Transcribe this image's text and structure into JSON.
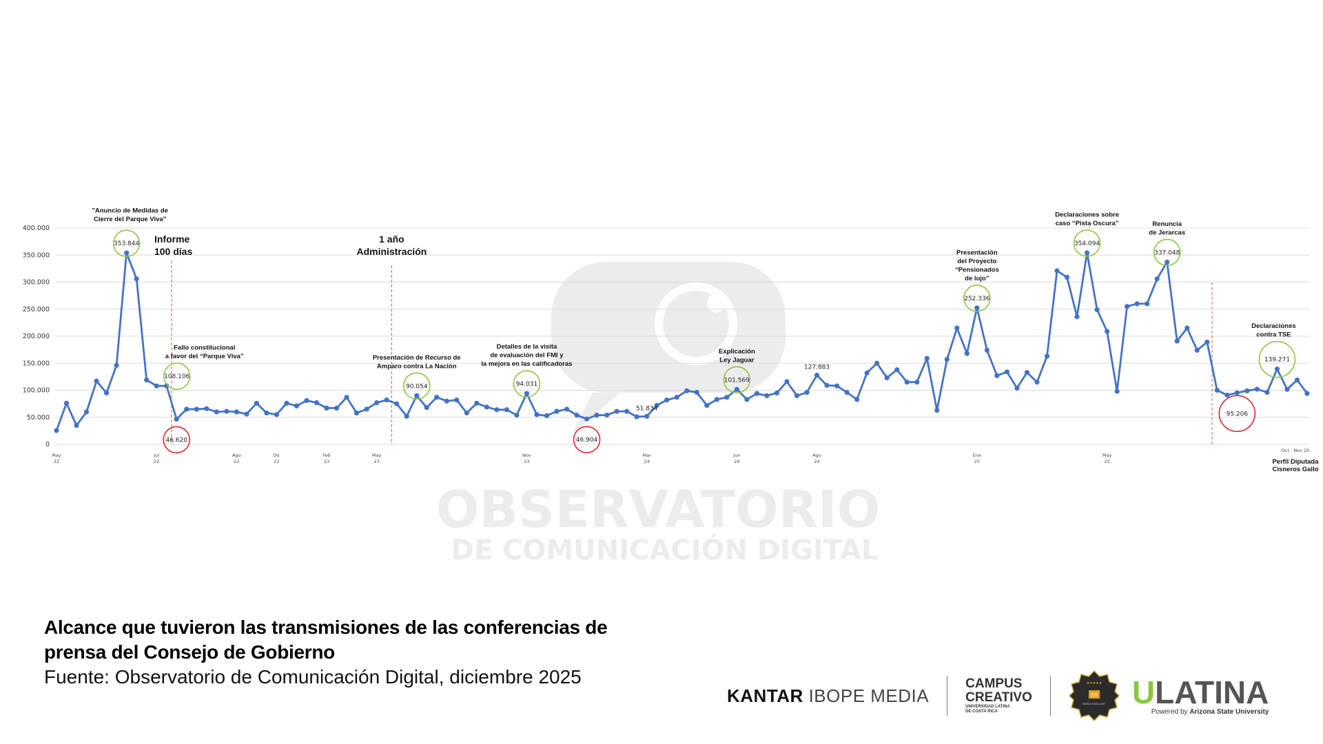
{
  "chart_data": {
    "type": "line",
    "title": "Alcance que tuvieron las transmisiones de las conferencias de prensa del Consejo de Gobierno",
    "source": "Fuente: Observatorio de Comunicación Digital, diciembre 2025",
    "ylim": [
      0,
      400000
    ],
    "y_ticks": [
      "0",
      "50.000",
      "100.000",
      "150.000",
      "200.000",
      "250.000",
      "300.000",
      "350.000",
      "400.000"
    ],
    "grid": true,
    "line_color": "#4472c4",
    "values": [
      25600,
      76000,
      35000,
      60000,
      117000,
      95000,
      146000,
      353844,
      306000,
      119000,
      108000,
      108106,
      46620,
      65000,
      65000,
      66000,
      60000,
      61000,
      60000,
      56000,
      76000,
      58000,
      55000,
      76000,
      71000,
      81000,
      77000,
      67000,
      67000,
      87000,
      58000,
      65000,
      77000,
      82000,
      75000,
      52000,
      90054,
      68000,
      87000,
      80000,
      82000,
      58000,
      76000,
      69000,
      64000,
      64000,
      54000,
      94031,
      55000,
      53000,
      61000,
      65000,
      54000,
      46904,
      54000,
      54000,
      61000,
      61000,
      51000,
      51834,
      72000,
      82000,
      87000,
      99000,
      96000,
      72000,
      83000,
      87000,
      101569,
      83000,
      94000,
      90000,
      95000,
      116000,
      90000,
      96000,
      127883,
      109000,
      108000,
      96000,
      83000,
      132000,
      150000,
      123000,
      138000,
      115000,
      115000,
      159000,
      63000,
      157000,
      215000,
      168000,
      252336,
      174000,
      127000,
      134000,
      104000,
      133000,
      115000,
      163000,
      321000,
      309000,
      236000,
      354094,
      249000,
      209000,
      98000,
      255000,
      260000,
      260000,
      306000,
      337048,
      191000,
      215000,
      174000,
      189000,
      100000,
      91000,
      95206,
      99000,
      102000,
      96000,
      139271,
      101600,
      119000,
      94000
    ],
    "x_ticks": [
      {
        "index": 0,
        "month": "May",
        "year": "22"
      },
      {
        "index": 10,
        "month": "Jul",
        "year": "22"
      },
      {
        "index": 18,
        "month": "Ago",
        "year": "22"
      },
      {
        "index": 22,
        "month": "Dic",
        "year": "22"
      },
      {
        "index": 27,
        "month": "Feb",
        "year": "23"
      },
      {
        "index": 32,
        "month": "May",
        "year": "23"
      },
      {
        "index": 47,
        "month": "Nov",
        "year": "23"
      },
      {
        "index": 59,
        "month": "Mar",
        "year": "24"
      },
      {
        "index": 68,
        "month": "Jun",
        "year": "24"
      },
      {
        "index": 76,
        "month": "Ago",
        "year": "24"
      },
      {
        "index": 92,
        "month": "Ene",
        "year": "25"
      },
      {
        "index": 105,
        "month": "May",
        "year": "25"
      }
    ],
    "x_tick_last": "Oct - Nov 25",
    "value_labels": [
      {
        "index": 7,
        "text": "353.844",
        "ring": "green"
      },
      {
        "index": 11,
        "text": "108.106",
        "ring": "green"
      },
      {
        "index": 12,
        "text": "46.620",
        "ring": "red"
      },
      {
        "index": 36,
        "text": "90.054",
        "ring": "green"
      },
      {
        "index": 47,
        "text": "94.031",
        "ring": "green"
      },
      {
        "index": 53,
        "text": "46.904",
        "ring": "red"
      },
      {
        "index": 59,
        "text": "51.834",
        "ring": "none"
      },
      {
        "index": 68,
        "text": "101.569",
        "ring": "green"
      },
      {
        "index": 76,
        "text": "127.883",
        "ring": "none"
      },
      {
        "index": 92,
        "text": "252.336",
        "ring": "green"
      },
      {
        "index": 103,
        "text": "354.094",
        "ring": "green"
      },
      {
        "index": 111,
        "text": "337.048",
        "ring": "green"
      },
      {
        "index": 118,
        "text": "95.206",
        "ring": "red"
      },
      {
        "index": 122,
        "text": "139.271",
        "ring": "green"
      }
    ],
    "events": [
      {
        "index": 7,
        "lines": [
          "\"Anuncio de Medidas de",
          "Cierre del Parque Viva\""
        ]
      },
      {
        "index": 11,
        "lines": [
          "Fallo constitucional",
          "a favor del “Parque Viva”"
        ]
      },
      {
        "index": 36,
        "lines": [
          "Presentación de Recurso de",
          "Amparo contra La Nación"
        ]
      },
      {
        "index": 47,
        "lines": [
          "Detalles de la visita",
          "de evaluación del FMI y",
          "la mejora en las calificadoras"
        ]
      },
      {
        "index": 68,
        "lines": [
          "Explicación",
          "Ley Jaguar"
        ]
      },
      {
        "index": 92,
        "lines": [
          "Presentación",
          "del Proyecto",
          "“Pensionados",
          "de lujo”"
        ]
      },
      {
        "index": 103,
        "lines": [
          "Declaraciones sobre",
          "caso “Pista Oscura”"
        ]
      },
      {
        "index": 111,
        "lines": [
          "Renuncia",
          "de Jerarcas"
        ]
      },
      {
        "index": 122,
        "lines": [
          "Declaraciones",
          "contra TSE"
        ]
      }
    ],
    "milestones": [
      {
        "after_index": 11,
        "lines": [
          "Informe",
          "100 días"
        ]
      },
      {
        "after_index": 33,
        "lines": [
          "1 año",
          "Administración"
        ]
      },
      {
        "after_index": 115,
        "lines": [
          "Perfil Diputada",
          "Cisneros Gallo"
        ]
      }
    ],
    "ring_colors": {
      "green": "#8dc63f",
      "red": "#d9262c"
    },
    "milestone_line_color": "#d9534f"
  },
  "watermark": {
    "line1": "OBSERVATORIO",
    "line2": "DE COMUNICACIÓN DIGITAL"
  },
  "logos": {
    "kantar_bold": "KANTAR",
    "kantar_rest": "IBOPE MEDIA",
    "campus1": "CAMPUS",
    "campus2": "CREATIVO",
    "campus_sub1": "UNIVERSIDAD LATINA",
    "campus_sub2": "DE COSTA RICA",
    "qs_text": "QS",
    "qs_sub": "RATED EXCELLENT",
    "ulatina_u": "U",
    "ulatina_rest": "LATINA",
    "powered": "Powered by ",
    "asu": "Arizona State University"
  }
}
